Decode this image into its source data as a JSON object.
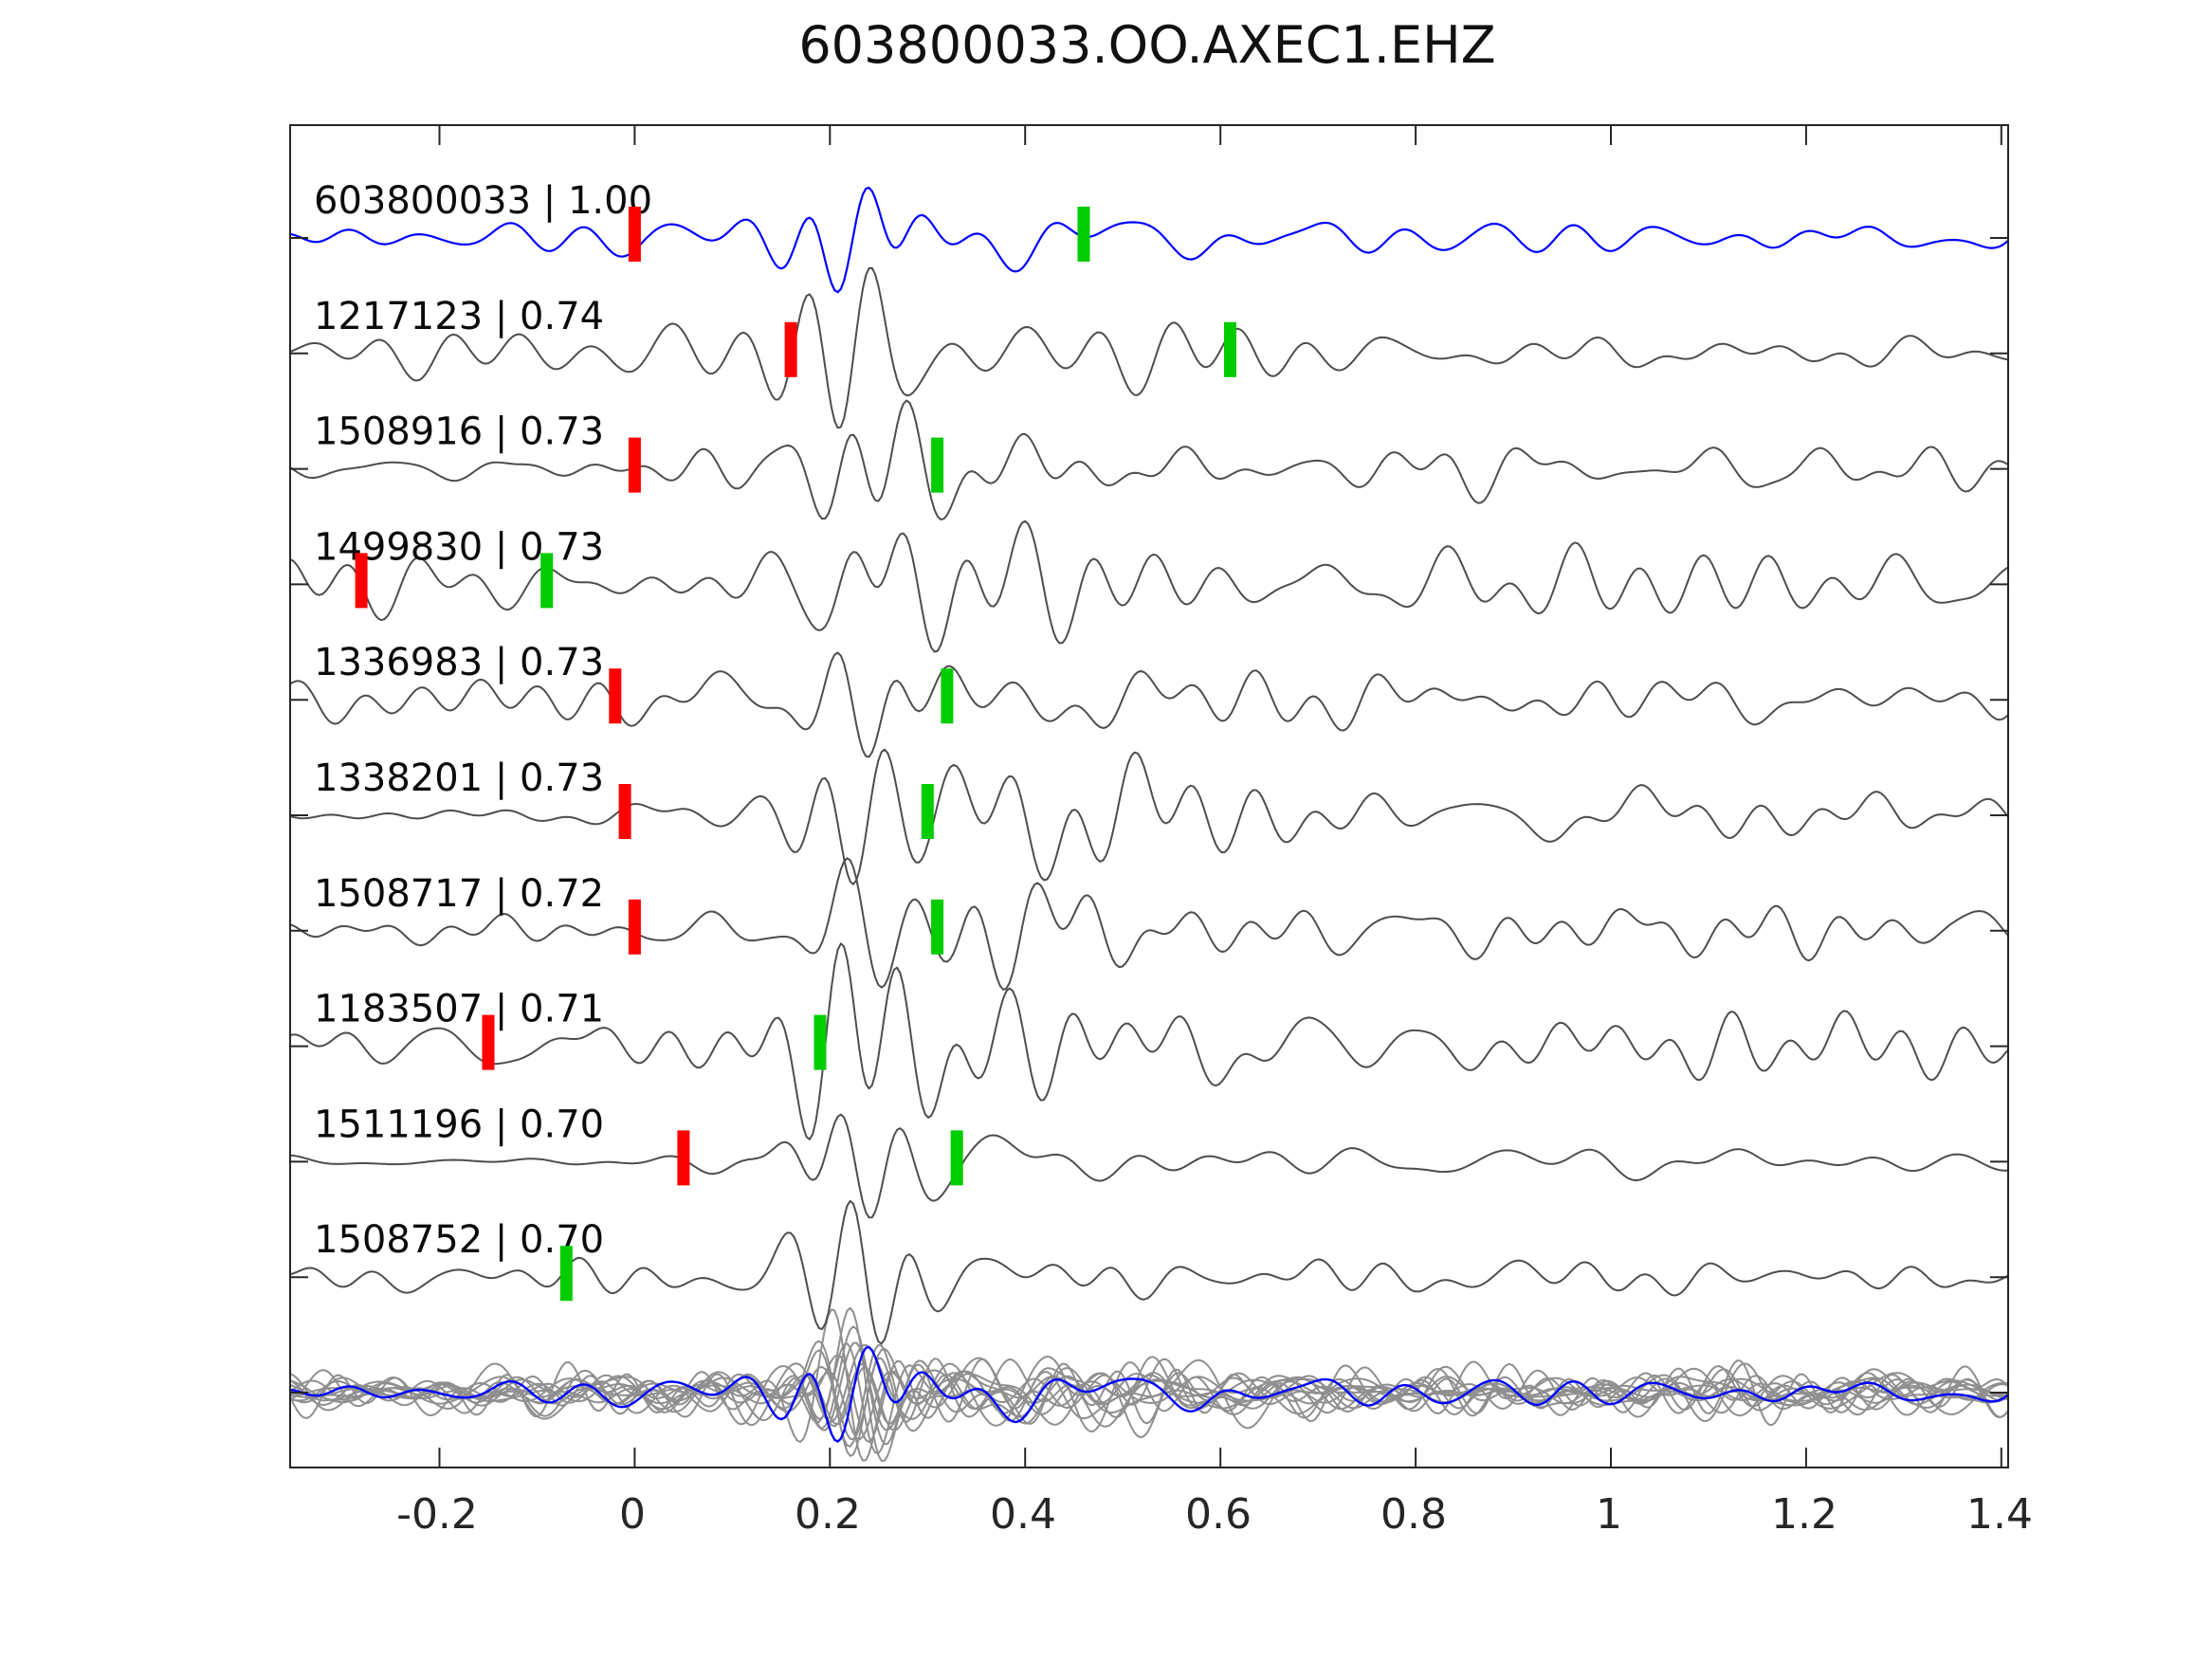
{
  "title": "603800033.OO.AXEC1.EHZ",
  "colors": {
    "reference_trace": "#0000ff",
    "match_trace": "#4d4d4d",
    "overlay_gray": "#8f8f8f",
    "overlay_blue": "#0000ff",
    "red_pick": "#ff0000",
    "green_pick": "#00cc00",
    "frame": "#262626",
    "label_text": "#0a0a0a",
    "tick_text": "#262626"
  },
  "chart_data": {
    "type": "line",
    "kind": "seismic-waveform-stack",
    "title": "603800033.OO.AXEC1.EHZ",
    "xlabel": "",
    "ylabel": "",
    "grid": false,
    "legend": null,
    "x_range": [
      -0.352,
      1.406
    ],
    "x_ticks": [
      -0.2,
      0,
      0.2,
      0.4,
      0.6,
      0.8,
      1,
      1.2,
      1.4
    ],
    "x_tick_labels": [
      "-0.2",
      "0",
      "0.2",
      "0.4",
      "0.6",
      "0.8",
      "1",
      "1.2",
      "1.4"
    ],
    "traces": [
      {
        "id": "603800033",
        "score": "1.00",
        "label": "603800033 | 1.00",
        "role": "reference",
        "red_pick": 0.0,
        "green_pick": 0.46,
        "render": {
          "seed": 1,
          "pre": 16,
          "post": 16,
          "burst": 55
        }
      },
      {
        "id": "1217123",
        "score": "0.74",
        "label": "1217123 | 0.74",
        "role": "match",
        "red_pick": 0.16,
        "green_pick": 0.61,
        "render": {
          "seed": 2,
          "pre": 22,
          "post": 22,
          "burst": 62
        }
      },
      {
        "id": "1508916",
        "score": "0.73",
        "label": "1508916 | 0.73",
        "role": "match",
        "red_pick": 0.0,
        "green_pick": 0.31,
        "render": {
          "seed": 3,
          "pre": 10,
          "post": 22,
          "burst": 60
        }
      },
      {
        "id": "1499830",
        "score": "0.73",
        "label": "1499830 | 0.73",
        "role": "match",
        "red_pick": -0.28,
        "green_pick": -0.09,
        "render": {
          "seed": 4,
          "pre": 38,
          "post": 38,
          "burst": 50
        }
      },
      {
        "id": "1336983",
        "score": "0.73",
        "label": "1336983 | 0.73",
        "role": "match",
        "red_pick": -0.02,
        "green_pick": 0.32,
        "render": {
          "seed": 5,
          "pre": 20,
          "post": 22,
          "burst": 62
        }
      },
      {
        "id": "1338201",
        "score": "0.73",
        "label": "1338201 | 0.73",
        "role": "match",
        "red_pick": -0.01,
        "green_pick": 0.3,
        "render": {
          "seed": 6,
          "pre": 5,
          "post": 28,
          "burst": 62
        }
      },
      {
        "id": "1508717",
        "score": "0.72",
        "label": "1508717 | 0.72",
        "role": "match",
        "red_pick": 0.0,
        "green_pick": 0.31,
        "render": {
          "seed": 7,
          "pre": 11,
          "post": 24,
          "burst": 55
        }
      },
      {
        "id": "1183507",
        "score": "0.71",
        "label": "1183507 | 0.71",
        "role": "match",
        "red_pick": -0.15,
        "green_pick": 0.19,
        "render": {
          "seed": 8,
          "pre": 22,
          "post": 32,
          "burst": 55
        }
      },
      {
        "id": "1511196",
        "score": "0.70",
        "label": "1511196 | 0.70",
        "role": "match",
        "red_pick": 0.05,
        "green_pick": 0.33,
        "render": {
          "seed": 9,
          "pre": 4,
          "post": 14,
          "burst": 62
        }
      },
      {
        "id": "1508752",
        "score": "0.70",
        "label": "1508752 | 0.70",
        "role": "match",
        "red_pick": null,
        "green_pick": -0.07,
        "render": {
          "seed": 10,
          "pre": 20,
          "post": 18,
          "burst": 66
        }
      }
    ],
    "overlay_stack": {
      "description": "all matched traces overlaid in gray with blue reference on top",
      "n_gray_traces": 13,
      "has_blue_reference": true
    }
  }
}
